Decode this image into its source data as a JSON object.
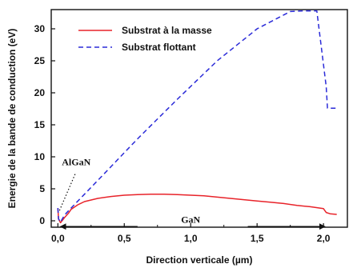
{
  "chart_data": {
    "type": "line",
    "xlabel": "Direction verticale (µm)",
    "ylabel": "Energie de la bande  de conduction (eV)",
    "xlim": [
      -0.05,
      2.18
    ],
    "ylim": [
      -1,
      33
    ],
    "xticks": [
      0,
      0.5,
      1,
      1.5,
      2
    ],
    "xtick_labels": [
      "0,0",
      "0,5",
      "1,0",
      "1,5",
      "2,0"
    ],
    "yticks": [
      0,
      5,
      10,
      15,
      20,
      25,
      30
    ],
    "ytick_labels": [
      "0",
      "5",
      "10",
      "15",
      "20",
      "25",
      "30"
    ],
    "legend_position": "top-left",
    "grid": false,
    "series": [
      {
        "name": "Substrat à la masse",
        "color": "#e8232a",
        "style": "solid",
        "x": [
          0.0,
          0.005,
          0.02,
          0.05,
          0.08,
          0.1,
          0.15,
          0.2,
          0.3,
          0.4,
          0.5,
          0.6,
          0.7,
          0.8,
          0.9,
          1.0,
          1.1,
          1.2,
          1.3,
          1.4,
          1.5,
          1.6,
          1.7,
          1.8,
          1.9,
          2.0,
          2.01,
          2.02,
          2.05,
          2.1
        ],
        "y": [
          2.0,
          0.3,
          -0.3,
          0.5,
          1.2,
          1.8,
          2.5,
          3.0,
          3.5,
          3.8,
          4.0,
          4.1,
          4.15,
          4.15,
          4.1,
          4.0,
          3.9,
          3.7,
          3.5,
          3.3,
          3.1,
          2.9,
          2.7,
          2.4,
          2.2,
          1.9,
          1.6,
          1.3,
          1.1,
          1.0
        ]
      },
      {
        "name": "Substrat flottant",
        "color": "#2a2ad8",
        "style": "dashed",
        "x": [
          0.0,
          0.005,
          0.02,
          0.05,
          0.1,
          0.3,
          0.6,
          0.9,
          1.2,
          1.5,
          1.75,
          1.85,
          1.95,
          2.02,
          2.03,
          2.06,
          2.1
        ],
        "y": [
          2.0,
          0.3,
          -0.2,
          0.9,
          2.0,
          6.3,
          12.8,
          19.0,
          25.0,
          30.0,
          32.7,
          32.8,
          32.8,
          21.0,
          17.6,
          17.6,
          17.6
        ]
      }
    ],
    "annotations": [
      {
        "text": "AlGaN",
        "x": 0.03,
        "y": 8.7
      },
      {
        "text": "GaN",
        "x": 1.0,
        "y": -0.3
      }
    ],
    "arrows": [
      {
        "from_x": 0.6,
        "to_x": 0.02,
        "y": -0.9
      },
      {
        "from_x": 1.43,
        "to_x": 2.01,
        "y": -0.9
      }
    ],
    "pointer": {
      "from_x": 0.13,
      "from_y": 7.3,
      "to_x": 0.01,
      "to_y": 1.5
    }
  }
}
